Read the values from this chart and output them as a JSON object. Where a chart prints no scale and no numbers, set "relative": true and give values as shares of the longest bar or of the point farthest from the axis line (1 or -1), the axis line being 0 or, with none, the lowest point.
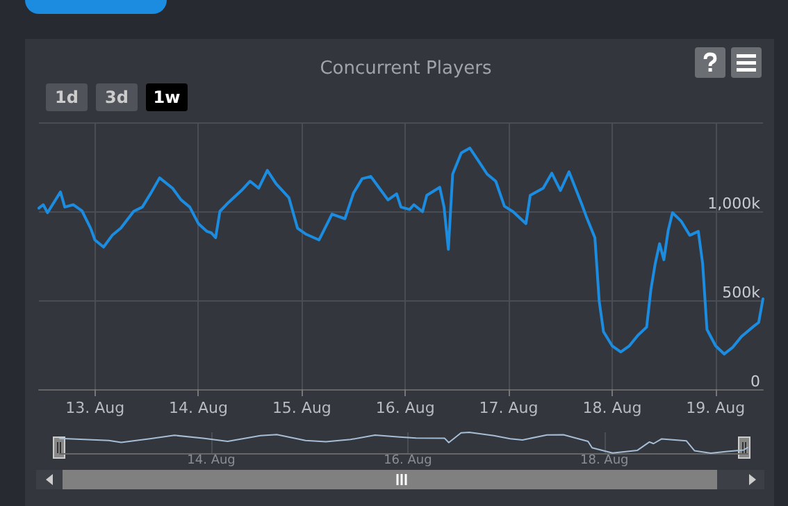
{
  "chart_data": [
    {
      "type": "line",
      "title": "Concurrent Players",
      "annotations": [
        "1d",
        "3d",
        "1w"
      ],
      "x": [
        "--08-12T11:00",
        "--08-12T12:00",
        "--08-12T13:00",
        "--08-12T16:00",
        "--08-12T17:00",
        "--08-12T19:00",
        "--08-12T21:00",
        "--08-12T23:00",
        "--08-13T00:00",
        "--08-13T02:00",
        "--08-13T04:00",
        "--08-13T06:00",
        "--08-13T09:00",
        "--08-13T11:00",
        "--08-13T13:00",
        "--08-13T15:00",
        "--08-13T18:00",
        "--08-13T20:00",
        "--08-13T22:00",
        "--08-14T00:00",
        "--08-14T02:00",
        "--08-14T03:00",
        "--08-14T04:00",
        "--08-14T05:00",
        "--08-14T07:00",
        "--08-14T10:00",
        "--08-14T12:00",
        "--08-14T14:00",
        "--08-14T16:00",
        "--08-14T18:00",
        "--08-14T21:00",
        "--08-14T23:00",
        "--08-15T01:00",
        "--08-15T04:00",
        "--08-15T05:00",
        "--08-15T07:00",
        "--08-15T10:00",
        "--08-15T12:00",
        "--08-15T14:00",
        "--08-15T16:00",
        "--08-15T18:00",
        "--08-15T20:00",
        "--08-15T22:00",
        "--08-15T23:00",
        "--08-16T01:00",
        "--08-16T02:00",
        "--08-16T04:00",
        "--08-16T05:00",
        "--08-16T08:00",
        "--08-16T09:00",
        "--08-16T10:00",
        "--08-16T11:00",
        "--08-16T13:00",
        "--08-16T15:00",
        "--08-16T17:00",
        "--08-16T19:00",
        "--08-16T21:00",
        "--08-16T23:00",
        "--08-17T01:00",
        "--08-17T04:00",
        "--08-17T05:00",
        "--08-17T08:00",
        "--08-17T10:00",
        "--08-17T12:00",
        "--08-17T14:00",
        "--08-17T17:00",
        "--08-17T18:00",
        "--08-17T20:00",
        "--08-17T21:00",
        "--08-17T22:00",
        "--08-18T00:00",
        "--08-18T02:00",
        "--08-18T04:00",
        "--08-18T06:00",
        "--08-18T08:00",
        "--08-18T09:00",
        "--08-18T10:00",
        "--08-18T11:00",
        "--08-18T12:00",
        "--08-18T13:00",
        "--08-18T14:00",
        "--08-18T16:00",
        "--08-18T18:00",
        "--08-18T20:00",
        "--08-18T21:00",
        "--08-18T22:00",
        "--08-19T00:00",
        "--08-19T02:00",
        "--08-19T04:00",
        "--08-19T06:00",
        "--08-19T09:00",
        "--08-19T10:00",
        "--08-19T11:00"
      ],
      "series": [
        {
          "color": "#1c8ce0",
          "values": [
            1018000,
            1037000,
            992000,
            1109000,
            1024000,
            1037000,
            1002000,
            905000,
            839000,
            799000,
            865000,
            905000,
            1000000,
            1024000,
            1103000,
            1188000,
            1130000,
            1064000,
            1024000,
            931000,
            887000,
            879000,
            852000,
            1000000,
            1050000,
            1117000,
            1169000,
            1130000,
            1230000,
            1156000,
            1077000,
            905000,
            871000,
            839000,
            887000,
            984000,
            958000,
            1103000,
            1183000,
            1196000,
            1130000,
            1064000,
            1098000,
            1024000,
            1010000,
            1037000,
            998000,
            1090000,
            1135000,
            1024000,
            786000,
            1209000,
            1328000,
            1355000,
            1283000,
            1209000,
            1169000,
            1029000,
            998000,
            931000,
            1090000,
            1130000,
            1214000,
            1117000,
            1222000,
            1037000,
            971000,
            852000,
            495000,
            323000,
            244000,
            209000,
            244000,
            304000,
            349000,
            561000,
            706000,
            818000,
            728000,
            891000,
            992000,
            945000,
            865000,
            887000,
            706000,
            336000,
            244000,
            198000,
            236000,
            296000,
            357000,
            375000,
            508000
          ]
        }
      ],
      "xlim": [
        "--08-12T11:00",
        "--08-19T11:00"
      ],
      "xticks": [
        {
          "value": "--08-13",
          "label": "13. Aug"
        },
        {
          "value": "--08-14",
          "label": "14. Aug"
        },
        {
          "value": "--08-15",
          "label": "15. Aug"
        },
        {
          "value": "--08-16",
          "label": "16. Aug"
        },
        {
          "value": "--08-17",
          "label": "17. Aug"
        },
        {
          "value": "--08-18",
          "label": "18. Aug"
        },
        {
          "value": "--08-19",
          "label": "19. Aug"
        }
      ],
      "ylim": [
        0,
        1500000
      ],
      "yticks": [
        {
          "value": 0,
          "label": "0"
        },
        {
          "value": 500000,
          "label": "500k"
        },
        {
          "value": 1000000,
          "label": "1,000k"
        },
        {
          "value": 1500000,
          "label": null
        }
      ],
      "grid": true,
      "marker": "none",
      "line_style": "solid"
    },
    {
      "type": "line",
      "relative": true,
      "x": [
        "--08-12T11:00",
        "--08-12T23:00",
        "--08-13T02:00",
        "--08-13T09:00",
        "--08-13T15:00",
        "--08-13T22:00",
        "--08-14T04:00",
        "--08-14T12:00",
        "--08-14T16:00",
        "--08-14T23:00",
        "--08-15T04:00",
        "--08-15T10:00",
        "--08-15T16:00",
        "--08-15T22:00",
        "--08-16T02:00",
        "--08-16T09:00",
        "--08-16T10:00",
        "--08-16T13:00",
        "--08-16T15:00",
        "--08-16T21:00",
        "--08-17T01:00",
        "--08-17T04:00",
        "--08-17T10:00",
        "--08-17T14:00",
        "--08-17T20:00",
        "--08-17T21:00",
        "--08-18T02:00",
        "--08-18T06:00",
        "--08-18T08:00",
        "--08-18T11:00",
        "--08-18T12:00",
        "--08-18T14:00",
        "--08-18T20:00",
        "--08-18T22:00",
        "--08-19T02:00",
        "--08-19T06:00",
        "--08-19T10:00",
        "--08-19T11:00"
      ],
      "series": [
        {
          "color": "#a6bdd6",
          "values": [
            0.709,
            0.611,
            0.519,
            0.693,
            0.856,
            0.714,
            0.565,
            0.839,
            0.892,
            0.611,
            0.554,
            0.657,
            0.863,
            0.778,
            0.725,
            0.714,
            0.508,
            0.977,
            1,
            0.839,
            0.691,
            0.634,
            0.878,
            0.885,
            0.565,
            0.257,
            0.01,
            0.092,
            0.131,
            0.536,
            0.458,
            0.686,
            0.595,
            0.119,
            0,
            0.085,
            0.153,
            0.268
          ]
        }
      ],
      "xlim": [
        "--08-12T11:00",
        "--08-19T11:00"
      ],
      "xticks": [
        {
          "value": "--08-14",
          "label": "14. Aug"
        },
        {
          "value": "--08-16",
          "label": "16. Aug"
        },
        {
          "value": "--08-18",
          "label": "18. Aug"
        }
      ],
      "tick_labels": "x",
      "grid": "x",
      "marker": "none",
      "line_style": "solid"
    }
  ]
}
